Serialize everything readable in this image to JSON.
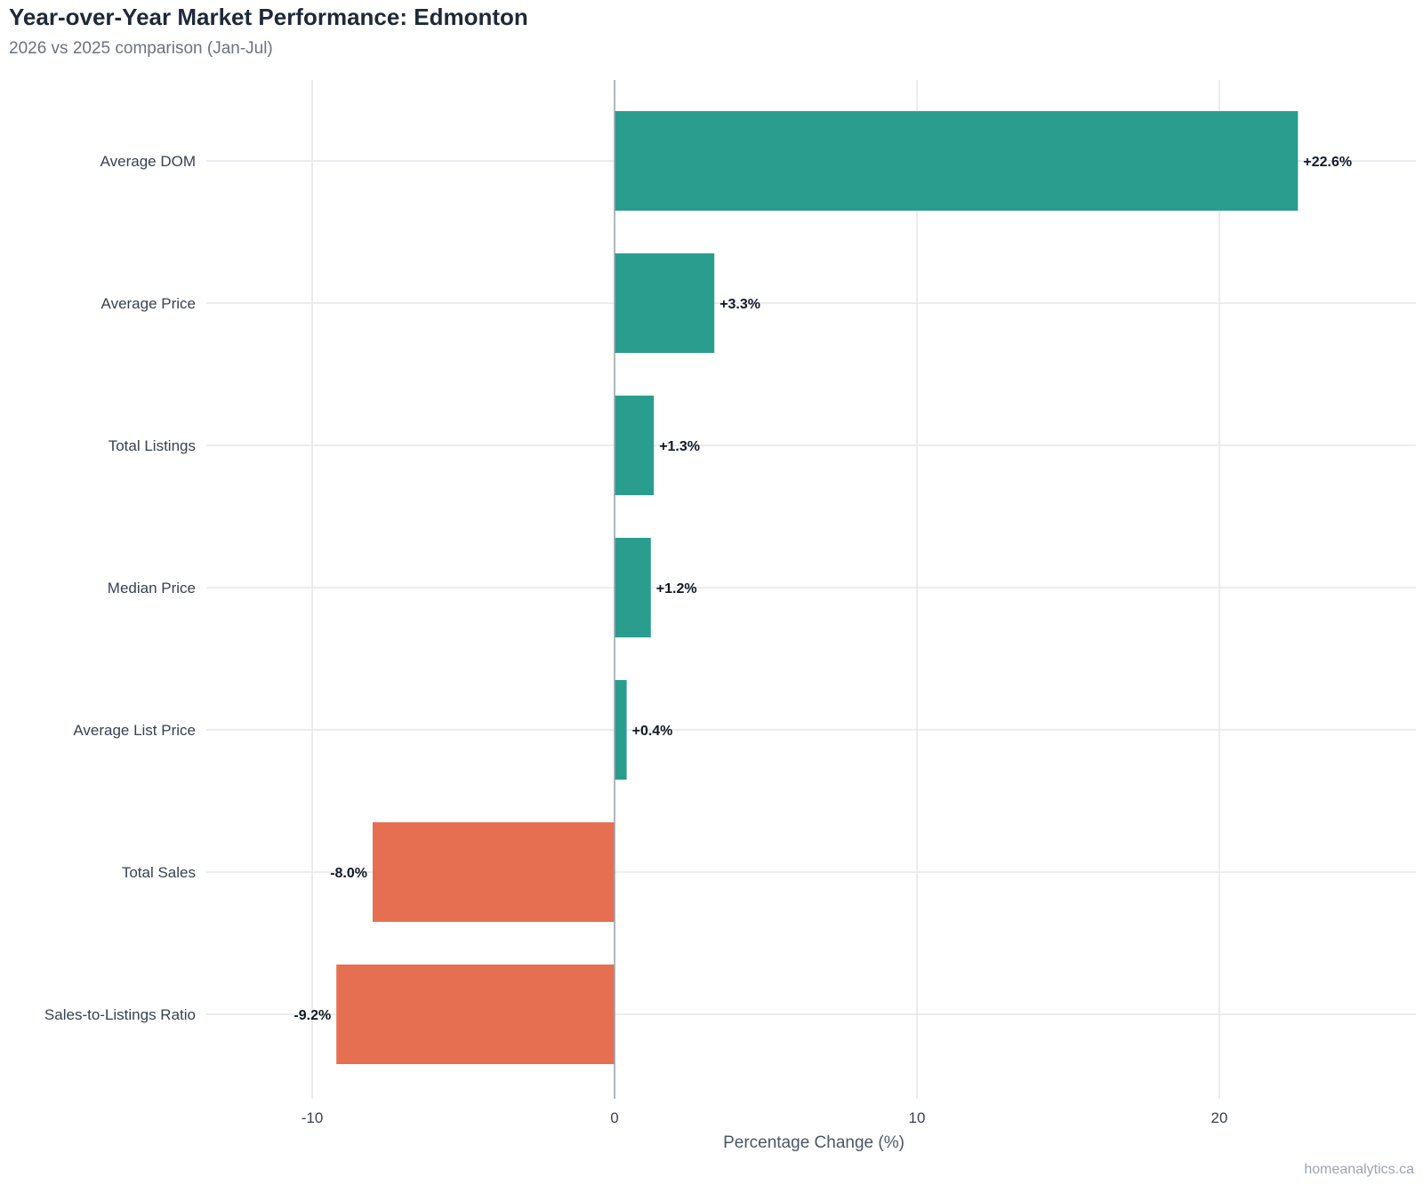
{
  "chart_data": {
    "type": "bar",
    "orientation": "horizontal",
    "title": "Year-over-Year Market Performance: Edmonton",
    "subtitle": "2026 vs 2025 comparison (Jan-Jul)",
    "xlabel": "Percentage Change (%)",
    "ylabel": "",
    "caption": "homeanalytics.ca",
    "categories": [
      "Average DOM",
      "Average Price",
      "Total Listings",
      "Median Price",
      "Average List Price",
      "Total Sales",
      "Sales-to-Listings Ratio"
    ],
    "values": [
      22.6,
      3.3,
      1.3,
      1.2,
      0.4,
      -8.0,
      -9.2
    ],
    "value_labels": [
      "+22.6%",
      "+3.3%",
      "+1.3%",
      "+1.2%",
      "+0.4%",
      "-8.0%",
      "-9.2%"
    ],
    "xlim": [
      -13.5,
      26.5
    ],
    "xticks": [
      -10,
      0,
      10,
      20
    ],
    "grid": true,
    "legend": "none",
    "colors": {
      "positive": "#2a9d8f",
      "negative": "#e76f51",
      "grid": "#e5e7eb",
      "zero_line": "#9ca3af",
      "label_text": "#111827",
      "tick_text": "#374151"
    }
  }
}
